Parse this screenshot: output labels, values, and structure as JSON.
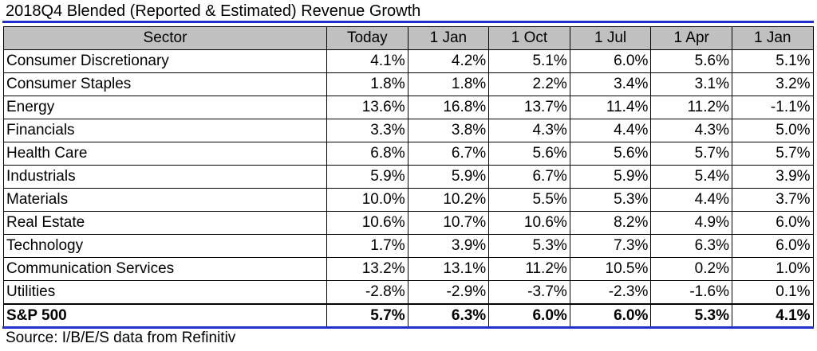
{
  "title": "2018Q4 Blended (Reported & Estimated) Revenue Growth",
  "headers": [
    "Sector",
    "Today",
    "1 Jan",
    "1 Oct",
    "1 Jul",
    "1 Apr",
    "1 Jan"
  ],
  "rows": [
    {
      "sector": "Consumer Discretionary",
      "values": [
        "4.1%",
        "4.2%",
        "5.1%",
        "6.0%",
        "5.6%",
        "5.1%"
      ]
    },
    {
      "sector": "Consumer Staples",
      "values": [
        "1.8%",
        "1.8%",
        "2.2%",
        "3.4%",
        "3.1%",
        "3.2%"
      ]
    },
    {
      "sector": "Energy",
      "values": [
        "13.6%",
        "16.8%",
        "13.7%",
        "11.4%",
        "11.2%",
        "-1.1%"
      ]
    },
    {
      "sector": "Financials",
      "values": [
        "3.3%",
        "3.8%",
        "4.3%",
        "4.4%",
        "4.3%",
        "5.0%"
      ]
    },
    {
      "sector": "Health Care",
      "values": [
        "6.8%",
        "6.7%",
        "5.6%",
        "5.6%",
        "5.7%",
        "5.7%"
      ]
    },
    {
      "sector": "Industrials",
      "values": [
        "5.9%",
        "5.9%",
        "6.7%",
        "5.9%",
        "5.4%",
        "3.9%"
      ]
    },
    {
      "sector": "Materials",
      "values": [
        "10.0%",
        "10.2%",
        "5.5%",
        "5.3%",
        "4.4%",
        "3.7%"
      ]
    },
    {
      "sector": "Real Estate",
      "values": [
        "10.6%",
        "10.7%",
        "10.6%",
        "8.2%",
        "4.9%",
        "6.0%"
      ]
    },
    {
      "sector": "Technology",
      "values": [
        "1.7%",
        "3.9%",
        "5.3%",
        "7.3%",
        "6.3%",
        "6.0%"
      ]
    },
    {
      "sector": "Communication Services",
      "values": [
        "13.2%",
        "13.1%",
        "11.2%",
        "10.5%",
        "0.2%",
        "1.0%"
      ]
    },
    {
      "sector": "Utilities",
      "values": [
        "-2.8%",
        "-2.9%",
        "-3.7%",
        "-2.3%",
        "-1.6%",
        "0.1%"
      ]
    }
  ],
  "total": {
    "sector": "S&P 500",
    "values": [
      "5.7%",
      "6.3%",
      "6.0%",
      "6.0%",
      "5.3%",
      "4.1%"
    ]
  },
  "source": "Source: I/B/E/S data from Refinitiv",
  "colors": {
    "rule": "#1f2fd0",
    "header_bg": "#c0c0c0"
  }
}
